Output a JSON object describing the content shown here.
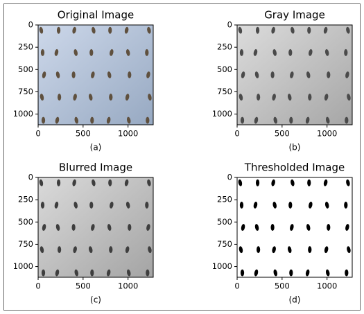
{
  "chart_data": [
    {
      "type": "image",
      "title": "Original Image",
      "xlabel": "(a)",
      "xlim": [
        0,
        1280
      ],
      "ylim": [
        1120,
        0
      ],
      "xticks": [
        0,
        500,
        1000
      ],
      "yticks": [
        0,
        250,
        500,
        750,
        1000
      ]
    },
    {
      "type": "image",
      "title": "Gray Image",
      "xlabel": "(b)",
      "xlim": [
        0,
        1280
      ],
      "ylim": [
        1120,
        0
      ],
      "xticks": [
        0,
        500,
        1000
      ],
      "yticks": [
        0,
        250,
        500,
        750,
        1000
      ]
    },
    {
      "type": "image",
      "title": "Blurred Image",
      "xlabel": "(c)",
      "xlim": [
        0,
        1280
      ],
      "ylim": [
        1120,
        0
      ],
      "xticks": [
        0,
        500,
        1000
      ],
      "yticks": [
        0,
        250,
        500,
        750,
        1000
      ]
    },
    {
      "type": "image",
      "title": "Thresholded Image",
      "xlabel": "(d)",
      "xlim": [
        0,
        1280
      ],
      "ylim": [
        1120,
        0
      ],
      "xticks": [
        0,
        500,
        1000
      ],
      "yticks": [
        0,
        250,
        500,
        750,
        1000
      ]
    }
  ]
}
